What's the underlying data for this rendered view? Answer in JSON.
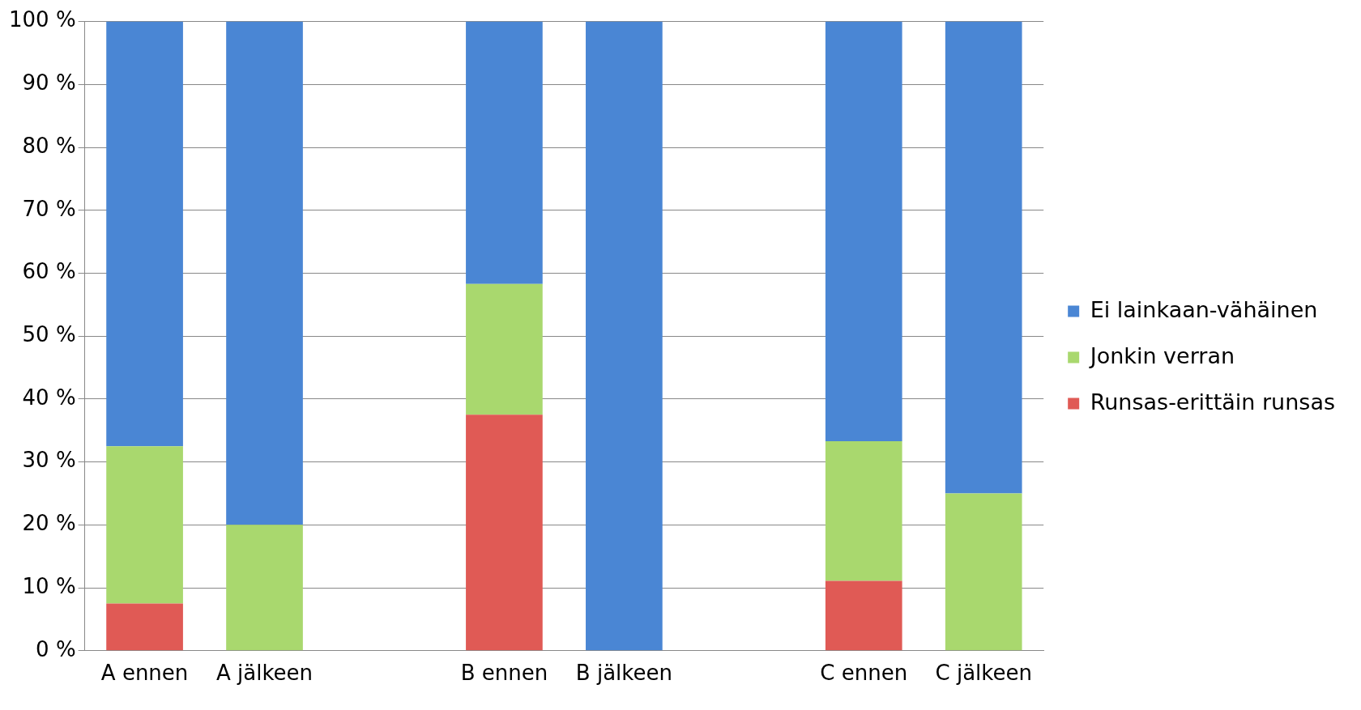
{
  "chart_data": {
    "type": "bar",
    "stacked": true,
    "categories": [
      "A ennen",
      "A jälkeen",
      null,
      "B ennen",
      "B jälkeen",
      null,
      "C ennen",
      "C jälkeen"
    ],
    "series": [
      {
        "name": "Runsas-erittäin runsas",
        "color": "#e05a55",
        "values": [
          7.5,
          0,
          null,
          37.5,
          0,
          null,
          11.1,
          0
        ]
      },
      {
        "name": "Jonkin verran",
        "color": "#a9d86e",
        "values": [
          25,
          20,
          null,
          20.8,
          0,
          null,
          22.2,
          25
        ]
      },
      {
        "name": "Ei lainkaan-vähäinen",
        "color": "#4a86d4",
        "values": [
          67.5,
          80,
          null,
          41.7,
          100,
          null,
          66.7,
          75
        ]
      }
    ],
    "ylim": [
      0,
      100
    ],
    "yticks": [
      {
        "value": 0,
        "label": "0 %"
      },
      {
        "value": 10,
        "label": "10 %"
      },
      {
        "value": 20,
        "label": "20 %"
      },
      {
        "value": 30,
        "label": "30 %"
      },
      {
        "value": 40,
        "label": "40 %"
      },
      {
        "value": 50,
        "label": "50 %"
      },
      {
        "value": 60,
        "label": "60 %"
      },
      {
        "value": 70,
        "label": "70 %"
      },
      {
        "value": 80,
        "label": "80 %"
      },
      {
        "value": 90,
        "label": "90 %"
      },
      {
        "value": 100,
        "label": "100 %"
      }
    ],
    "grid": "y",
    "legend": "right"
  }
}
